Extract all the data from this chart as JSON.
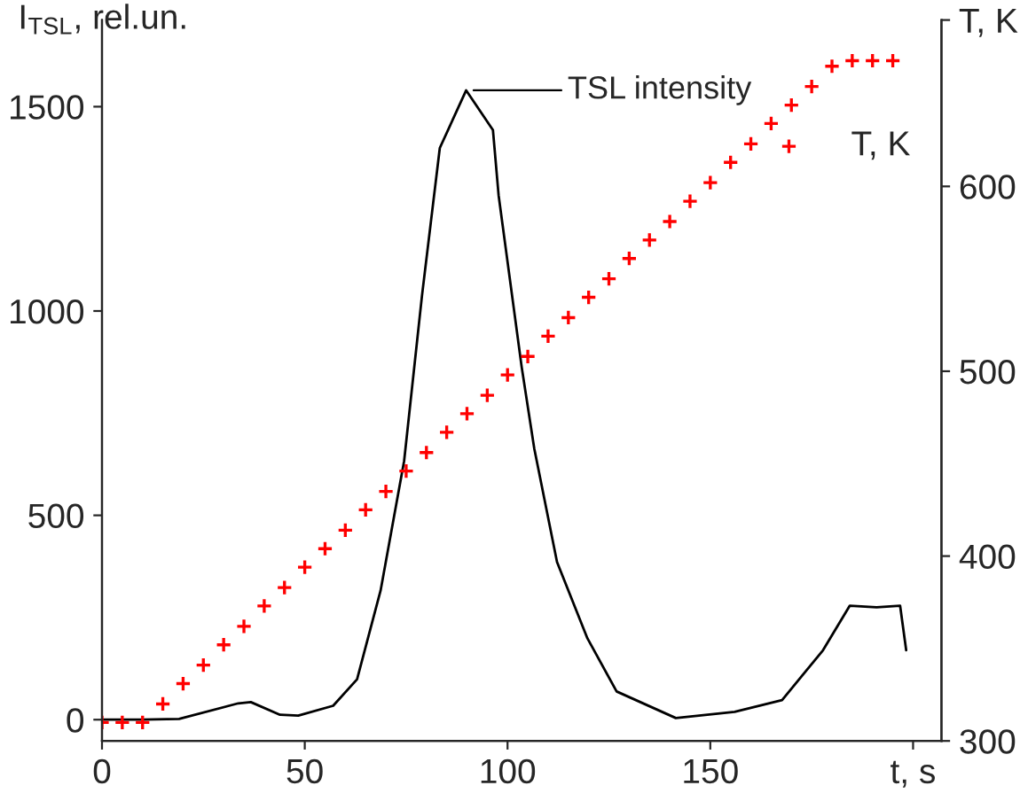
{
  "chart_data": {
    "type": "line",
    "xlabel": null,
    "ylabel": "I$_{TSL}$, rel.un.",
    "xlim": [
      0,
      207
    ],
    "xticks": [
      0,
      50,
      100,
      150,
      {
        "value": 200,
        "label": "t, s"
      }
    ],
    "ylim": [
      -52,
      1712
    ],
    "yticks": [
      0,
      500,
      1000,
      1500
    ],
    "y2lim": [
      300,
      690
    ],
    "y2ticks": [
      300,
      400,
      500,
      600,
      {
        "value": 690,
        "label": "T, K"
      }
    ],
    "legend": "top right",
    "grid": false,
    "series": [
      {
        "name": "TSL intensity",
        "color": "#000000",
        "x": [
          0,
          10,
          19,
          33.6,
          36.7,
          43.9,
          48.4,
          57,
          62.9,
          68.7,
          74.5,
          78.9,
          83.3,
          89.8,
          96.4,
          97.8,
          103.5,
          106.6,
          112.2,
          119.7,
          126.9,
          141.5,
          156,
          167.7,
          177.8,
          184.4,
          191,
          196.8,
          198.3
        ],
        "values": [
          0,
          0,
          2,
          40,
          43,
          12,
          10,
          34,
          99,
          316,
          633,
          1037,
          1399,
          1540,
          1443,
          1283,
          862,
          663,
          386,
          199,
          69,
          4,
          19,
          48,
          170,
          279,
          275,
          279,
          170
        ]
      },
      {
        "name": "T, K",
        "type": "scatter",
        "axis": "y2",
        "color": "#ff0000",
        "marker": "cross",
        "x": [
          0,
          5,
          10,
          15,
          20,
          25,
          30,
          35,
          40,
          45,
          50,
          55,
          60,
          65,
          70,
          75,
          80,
          85,
          90,
          95,
          100,
          105,
          110,
          115,
          120,
          125,
          130,
          135,
          140,
          145,
          150,
          155,
          160,
          165,
          170,
          175,
          180,
          185,
          190,
          195
        ],
        "values": [
          310,
          310,
          310,
          320,
          331,
          341,
          352,
          362,
          373,
          383,
          394,
          404,
          414,
          425,
          435,
          446,
          456,
          467,
          477,
          487,
          498,
          508,
          519,
          529,
          540,
          550,
          561,
          571,
          581,
          592,
          602,
          613,
          623,
          634,
          644,
          654,
          665,
          668,
          668,
          668
        ]
      }
    ]
  }
}
